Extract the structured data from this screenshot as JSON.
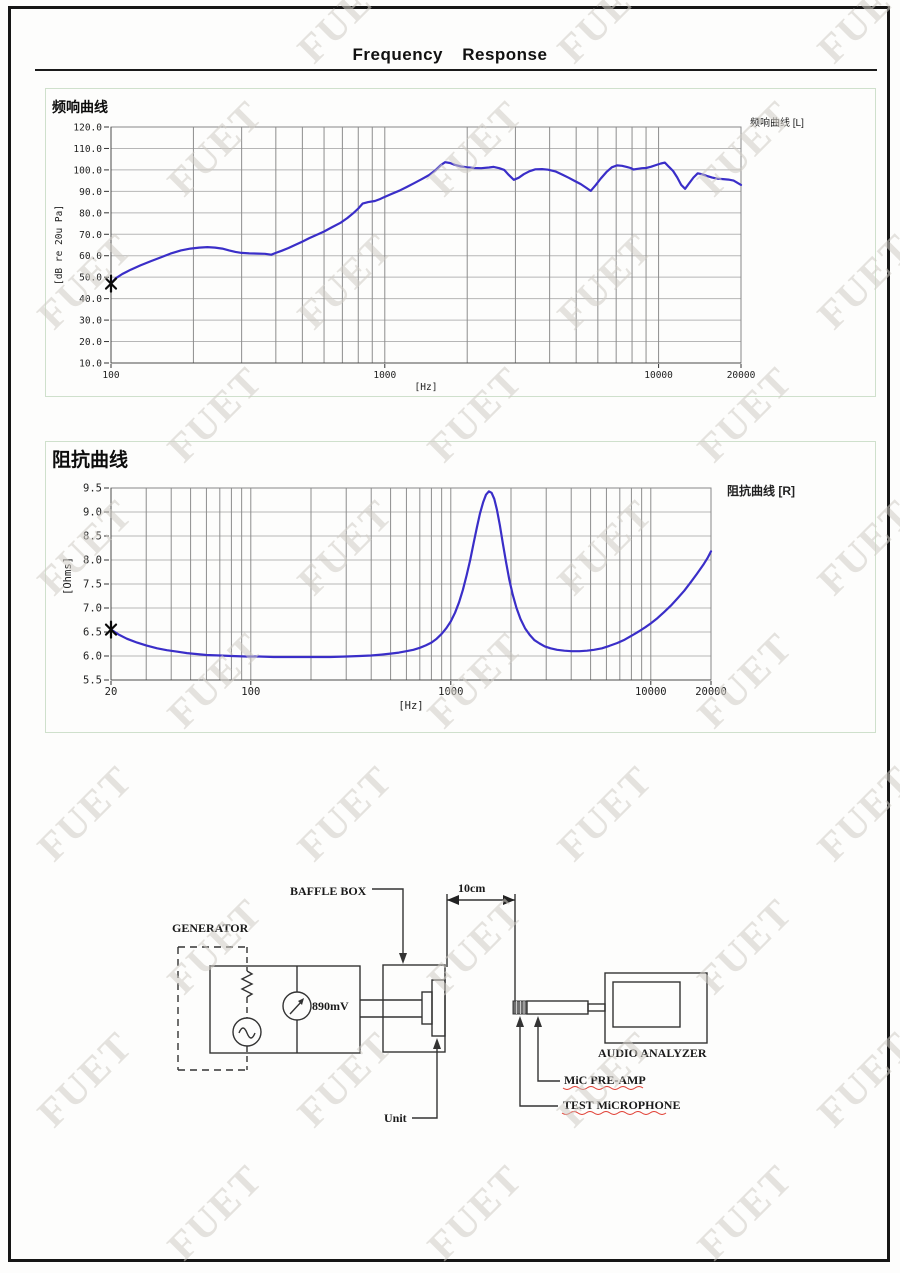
{
  "page": {
    "title": "Frequency Response",
    "watermark_text": "FUET"
  },
  "panels": [
    {
      "header": "频响曲线",
      "legend": "频响曲线 [L]"
    },
    {
      "header": "阻抗曲线",
      "legend": "阻抗曲线 [R]"
    }
  ],
  "chart_data": [
    {
      "type": "line",
      "title": "频响曲线",
      "legend_label": "频响曲线 [L]",
      "legend_position": "top-right",
      "xlabel": "[Hz]",
      "ylabel": "[dB re 20u Pa]",
      "x_scale": "log",
      "grid": true,
      "xlim": [
        100,
        20000
      ],
      "ylim": [
        10,
        120
      ],
      "y_ticks": [
        {
          "v": 120,
          "label": "120.0"
        },
        {
          "v": 110,
          "label": "110.0"
        },
        {
          "v": 100,
          "label": "100.0"
        },
        {
          "v": 90,
          "label": "90.0"
        },
        {
          "v": 80,
          "label": "80.0"
        },
        {
          "v": 70,
          "label": "70.0"
        },
        {
          "v": 60,
          "label": "60.0"
        },
        {
          "v": 50,
          "label": "50.0"
        },
        {
          "v": 40,
          "label": "40.0"
        },
        {
          "v": 30,
          "label": "30.0"
        },
        {
          "v": 20,
          "label": "20.0"
        },
        {
          "v": 10,
          "label": "10.0"
        }
      ],
      "x_ticks": [
        {
          "v": 100,
          "label": "100"
        },
        {
          "v": 1000,
          "label": "1000"
        },
        {
          "v": 10000,
          "label": "10000"
        },
        {
          "v": 20000,
          "label": "20000"
        }
      ],
      "marker": {
        "f": 100,
        "v": 47
      },
      "series": [
        {
          "name": "频响曲线 [L]",
          "color": "#3a2ec8",
          "points": [
            [
              100,
              47
            ],
            [
              104,
              49.5
            ],
            [
              110,
              51.5
            ],
            [
              118,
              53.5
            ],
            [
              128,
              55.5
            ],
            [
              140,
              57.5
            ],
            [
              152,
              59.2
            ],
            [
              165,
              61
            ],
            [
              180,
              62.5
            ],
            [
              195,
              63.3
            ],
            [
              210,
              63.8
            ],
            [
              225,
              64
            ],
            [
              240,
              63.8
            ],
            [
              255,
              63.3
            ],
            [
              270,
              62.5
            ],
            [
              285,
              61.8
            ],
            [
              300,
              61.3
            ],
            [
              320,
              61.1
            ],
            [
              345,
              61
            ],
            [
              365,
              60.9
            ],
            [
              385,
              60.5
            ],
            [
              400,
              61.3
            ],
            [
              420,
              62.3
            ],
            [
              445,
              63.6
            ],
            [
              470,
              65
            ],
            [
              500,
              66.6
            ],
            [
              530,
              68.2
            ],
            [
              565,
              69.8
            ],
            [
              600,
              71.3
            ],
            [
              640,
              73.2
            ],
            [
              690,
              75.4
            ],
            [
              730,
              77.6
            ],
            [
              770,
              80
            ],
            [
              800,
              82
            ],
            [
              830,
              84.3
            ],
            [
              870,
              85
            ],
            [
              920,
              85.5
            ],
            [
              960,
              86.4
            ],
            [
              1000,
              87.4
            ],
            [
              1060,
              88.8
            ],
            [
              1130,
              90.3
            ],
            [
              1200,
              92
            ],
            [
              1280,
              93.8
            ],
            [
              1360,
              95.6
            ],
            [
              1450,
              97.6
            ],
            [
              1530,
              99.8
            ],
            [
              1600,
              102.2
            ],
            [
              1660,
              103.6
            ],
            [
              1730,
              103.2
            ],
            [
              1800,
              102.4
            ],
            [
              1900,
              101.6
            ],
            [
              2000,
              101.2
            ],
            [
              2120,
              100.9
            ],
            [
              2250,
              100.8
            ],
            [
              2400,
              101.1
            ],
            [
              2500,
              101.4
            ],
            [
              2620,
              100.8
            ],
            [
              2730,
              100
            ],
            [
              2840,
              97.6
            ],
            [
              2960,
              95.4
            ],
            [
              3080,
              96.3
            ],
            [
              3220,
              98
            ],
            [
              3380,
              99.4
            ],
            [
              3550,
              100.3
            ],
            [
              3750,
              100.4
            ],
            [
              3950,
              100.1
            ],
            [
              4200,
              99.3
            ],
            [
              4450,
              97.8
            ],
            [
              4700,
              96.3
            ],
            [
              4950,
              94.8
            ],
            [
              5200,
              93.4
            ],
            [
              5450,
              91.6
            ],
            [
              5650,
              90.2
            ],
            [
              5900,
              93
            ],
            [
              6150,
              96
            ],
            [
              6450,
              99
            ],
            [
              6750,
              101.2
            ],
            [
              7050,
              102.1
            ],
            [
              7350,
              101.9
            ],
            [
              7650,
              101.4
            ],
            [
              7900,
              100.9
            ],
            [
              8100,
              100.2
            ],
            [
              8400,
              100.5
            ],
            [
              8700,
              100.8
            ],
            [
              9000,
              100.9
            ],
            [
              9400,
              101.5
            ],
            [
              9800,
              102.3
            ],
            [
              10200,
              103
            ],
            [
              10550,
              103.4
            ],
            [
              10900,
              101.5
            ],
            [
              11300,
              99.5
            ],
            [
              11700,
              96.5
            ],
            [
              12100,
              93
            ],
            [
              12500,
              91.2
            ],
            [
              12900,
              93.6
            ],
            [
              13400,
              96.4
            ],
            [
              13900,
              98.4
            ],
            [
              14400,
              98
            ],
            [
              15000,
              97.2
            ],
            [
              15700,
              96.4
            ],
            [
              16400,
              95.9
            ],
            [
              17200,
              95.7
            ],
            [
              18000,
              95.5
            ],
            [
              18800,
              95
            ],
            [
              19400,
              94
            ],
            [
              20000,
              93
            ]
          ]
        }
      ]
    },
    {
      "type": "line",
      "title": "阻抗曲线",
      "legend_label": "阻抗曲线 [R]",
      "legend_position": "top-right",
      "xlabel": "[Hz]",
      "ylabel": "[Ohms]",
      "x_scale": "log",
      "grid": true,
      "xlim": [
        20,
        20000
      ],
      "ylim": [
        5.5,
        9.5
      ],
      "y_ticks": [
        {
          "v": 9.5,
          "label": "9.5"
        },
        {
          "v": 9.0,
          "label": "9.0"
        },
        {
          "v": 8.5,
          "label": "8.5"
        },
        {
          "v": 8.0,
          "label": "8.0"
        },
        {
          "v": 7.5,
          "label": "7.5"
        },
        {
          "v": 7.0,
          "label": "7.0"
        },
        {
          "v": 6.5,
          "label": "6.5"
        },
        {
          "v": 6.0,
          "label": "6.0"
        },
        {
          "v": 5.5,
          "label": "5.5"
        }
      ],
      "x_ticks": [
        {
          "v": 20,
          "label": "20"
        },
        {
          "v": 100,
          "label": "100"
        },
        {
          "v": 1000,
          "label": "1000"
        },
        {
          "v": 10000,
          "label": "10000"
        },
        {
          "v": 20000,
          "label": "20000"
        }
      ],
      "marker": {
        "f": 20,
        "v": 6.55
      },
      "series": [
        {
          "name": "阻抗曲线 [R]",
          "color": "#3a2ec8",
          "points": [
            [
              20,
              6.55
            ],
            [
              22,
              6.44
            ],
            [
              24,
              6.36
            ],
            [
              27,
              6.28
            ],
            [
              30,
              6.22
            ],
            [
              34,
              6.16
            ],
            [
              38,
              6.12
            ],
            [
              43,
              6.09
            ],
            [
              48,
              6.06
            ],
            [
              54,
              6.04
            ],
            [
              60,
              6.02
            ],
            [
              70,
              6.01
            ],
            [
              80,
              6.0
            ],
            [
              95,
              5.99
            ],
            [
              110,
              5.99
            ],
            [
              130,
              5.98
            ],
            [
              150,
              5.98
            ],
            [
              180,
              5.98
            ],
            [
              210,
              5.98
            ],
            [
              250,
              5.98
            ],
            [
              300,
              5.99
            ],
            [
              350,
              6.0
            ],
            [
              400,
              6.01
            ],
            [
              450,
              6.03
            ],
            [
              500,
              6.05
            ],
            [
              550,
              6.07
            ],
            [
              600,
              6.1
            ],
            [
              650,
              6.13
            ],
            [
              700,
              6.17
            ],
            [
              750,
              6.22
            ],
            [
              800,
              6.28
            ],
            [
              850,
              6.36
            ],
            [
              900,
              6.46
            ],
            [
              950,
              6.58
            ],
            [
              1000,
              6.72
            ],
            [
              1050,
              6.9
            ],
            [
              1100,
              7.12
            ],
            [
              1150,
              7.38
            ],
            [
              1200,
              7.68
            ],
            [
              1250,
              8.0
            ],
            [
              1300,
              8.35
            ],
            [
              1350,
              8.68
            ],
            [
              1400,
              8.97
            ],
            [
              1450,
              9.2
            ],
            [
              1500,
              9.36
            ],
            [
              1550,
              9.43
            ],
            [
              1600,
              9.4
            ],
            [
              1650,
              9.27
            ],
            [
              1700,
              9.05
            ],
            [
              1760,
              8.72
            ],
            [
              1820,
              8.35
            ],
            [
              1890,
              7.95
            ],
            [
              1960,
              7.6
            ],
            [
              2040,
              7.28
            ],
            [
              2130,
              7.0
            ],
            [
              2230,
              6.77
            ],
            [
              2350,
              6.58
            ],
            [
              2480,
              6.44
            ],
            [
              2620,
              6.33
            ],
            [
              2780,
              6.26
            ],
            [
              2950,
              6.2
            ],
            [
              3150,
              6.16
            ],
            [
              3400,
              6.13
            ],
            [
              3700,
              6.11
            ],
            [
              4000,
              6.1
            ],
            [
              4400,
              6.1
            ],
            [
              4800,
              6.11
            ],
            [
              5200,
              6.13
            ],
            [
              5700,
              6.16
            ],
            [
              6200,
              6.21
            ],
            [
              6800,
              6.27
            ],
            [
              7400,
              6.34
            ],
            [
              8000,
              6.42
            ],
            [
              8700,
              6.51
            ],
            [
              9400,
              6.6
            ],
            [
              10000,
              6.68
            ],
            [
              10800,
              6.79
            ],
            [
              11700,
              6.92
            ],
            [
              12600,
              7.05
            ],
            [
              13600,
              7.2
            ],
            [
              14700,
              7.36
            ],
            [
              15800,
              7.53
            ],
            [
              17000,
              7.71
            ],
            [
              18300,
              7.9
            ],
            [
              19200,
              8.04
            ],
            [
              20000,
              8.18
            ]
          ]
        }
      ]
    }
  ],
  "diagram": {
    "generator_label": "GENERATOR",
    "baffle_box_label": "BAFFLE BOX",
    "distance_label": "10cm",
    "voltage_label": "890mV",
    "unit_label": "Unit",
    "audio_analyzer_label": "AUDIO ANALYZER",
    "mic_preamp_label": "MiC PRE-AMP",
    "test_microphone_label": "TEST MiCROPHONE"
  }
}
